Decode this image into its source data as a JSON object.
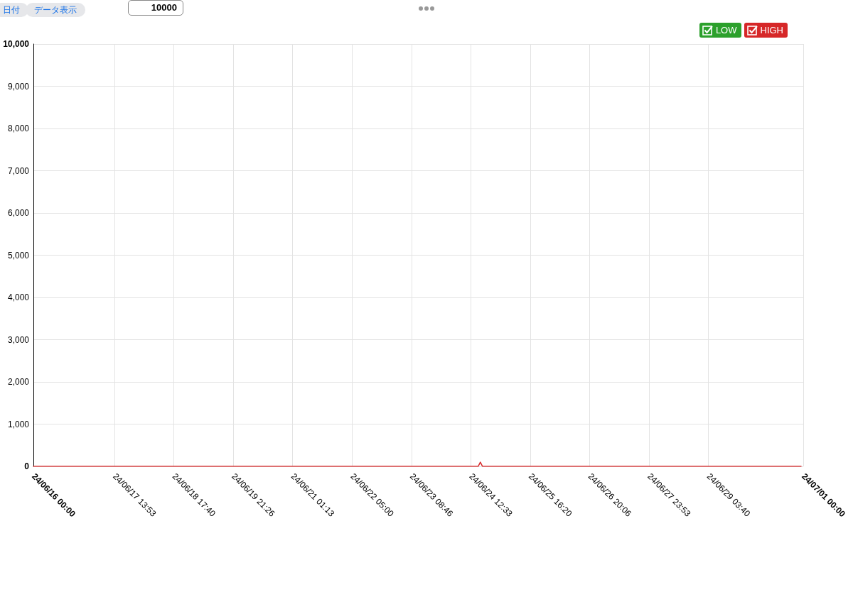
{
  "chart_data": {
    "type": "line",
    "annotations": [
      "日付",
      "データ表示",
      "10000"
    ],
    "x": [
      "--06-16T00:00",
      "--06-17T00:00",
      "--06-18T00:00",
      "--06-19T00:00",
      "--06-20T00:00",
      "--06-21T00:00",
      "--06-22T00:00",
      "--06-23T00:00",
      "--06-24T00:00",
      "--06-24T16:00",
      "--06-24T17:00",
      "--06-24T18:00",
      "--06-25T00:00",
      "--06-26T00:00",
      "--06-27T00:00",
      "--06-28T00:00",
      "--06-29T00:00",
      "--06-30T00:00",
      "--06-30T23:00"
    ],
    "series": [
      {
        "name": "LOW",
        "color": "#2ca02c",
        "values": [
          null,
          null,
          null,
          null,
          null,
          null,
          null,
          null,
          null,
          null,
          null,
          null,
          null,
          null,
          null,
          null,
          null,
          null,
          null
        ]
      },
      {
        "name": "HIGH",
        "color": "#d62728",
        "values": [
          0,
          0,
          0,
          0,
          0,
          0,
          0,
          0,
          0,
          0,
          100,
          0,
          0,
          0,
          0,
          0,
          0,
          0,
          0
        ]
      }
    ],
    "xlim": [
      "--06-16T00:00",
      "--07-01T00:00"
    ],
    "xticks": [
      {
        "value": "--06-16T00:00",
        "label": "24/06/16 00:00"
      },
      {
        "value": "--06-17T13:53",
        "label": "24/06/17 13:53"
      },
      {
        "value": "--06-18T17:40",
        "label": "24/06/18 17:40"
      },
      {
        "value": "--06-19T21:26",
        "label": "24/06/19 21:26"
      },
      {
        "value": "--06-21T01:13",
        "label": "24/06/21 01:13"
      },
      {
        "value": "--06-22T05:00",
        "label": "24/06/22 05:00"
      },
      {
        "value": "--06-23T08:46",
        "label": "24/06/23 08:46"
      },
      {
        "value": "--06-24T12:33",
        "label": "24/06/24 12:33"
      },
      {
        "value": "--06-25T16:20",
        "label": "24/06/25 16:20"
      },
      {
        "value": "--06-26T20:06",
        "label": "24/06/26 20:06"
      },
      {
        "value": "--06-27T23:53",
        "label": "24/06/27 23:53"
      },
      {
        "value": "--06-29T03:40",
        "label": "24/06/29 03:40"
      },
      {
        "value": "--07-01T00:00",
        "label": "24/07/01 00:00"
      }
    ],
    "ylim": [
      0,
      10000
    ],
    "yticks": [
      {
        "value": 0,
        "label": "0"
      },
      {
        "value": 1000,
        "label": "1,000"
      },
      {
        "value": 2000,
        "label": "2,000"
      },
      {
        "value": 3000,
        "label": "3,000"
      },
      {
        "value": 4000,
        "label": "4,000"
      },
      {
        "value": 5000,
        "label": "5,000"
      },
      {
        "value": 6000,
        "label": "6,000"
      },
      {
        "value": 7000,
        "label": "7,000"
      },
      {
        "value": 8000,
        "label": "8,000"
      },
      {
        "value": 9000,
        "label": "9,000"
      },
      {
        "value": 10000,
        "label": "10,000"
      }
    ],
    "grid": true,
    "legend": "top right",
    "marker": "none",
    "line_style": "solid"
  }
}
